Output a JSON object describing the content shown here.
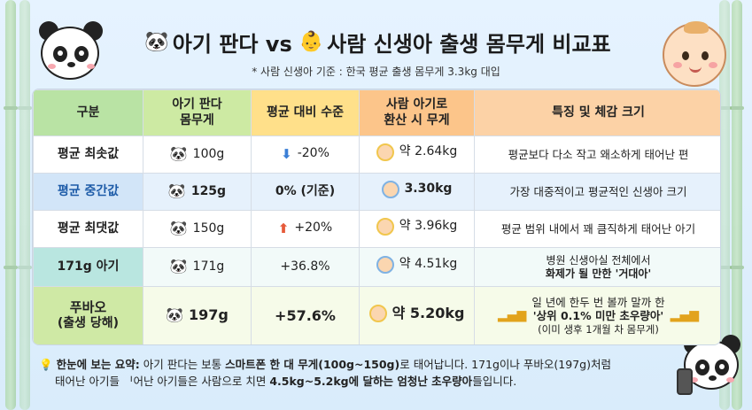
{
  "title": {
    "left_emoji_name": "panda-face-icon",
    "part1": "아기 판다 vs",
    "right_emoji_name": "baby-face-icon",
    "part2": "사람 신생아 출생 몸무게 비교표"
  },
  "note": "* 사람 신생아 기준 : 한국 평균 출생 몸무게 3.3kg 대입",
  "table": {
    "headers": {
      "gubun": "구분",
      "weight_l1": "아기 판다",
      "weight_l2": "몸무게",
      "level": "평균 대비 수준",
      "human_l1": "사람 아기로",
      "human_l2": "환산 시 무게",
      "feature": "특징 및 체감 크기"
    },
    "rows": [
      {
        "label": "평균 최솟값",
        "weight": "100g",
        "level_arrow": "down",
        "level": "-20%",
        "human": "약 2.64kg",
        "feature": "평균보다 다소 작고 왜소하게 태어난 편"
      },
      {
        "label": "평균 중간값",
        "weight": "125g",
        "level": "0% (기준)",
        "human": "3.30kg",
        "feature": "가장 대중적이고 평균적인 신생아 크기"
      },
      {
        "label": "평균 최댓값",
        "weight": "150g",
        "level_arrow": "up",
        "level": "+20%",
        "human": "약 3.96kg",
        "feature": "평균 범위 내에서 꽤 큼직하게 태어난 아기"
      },
      {
        "label": "171g 아기",
        "weight": "171g",
        "level": "+36.8%",
        "human": "약 4.51kg",
        "feature_l1": "병원 신생아실 전체에서",
        "feature_l2": "화제가 될 만한 '거대아'"
      },
      {
        "label_l1": "푸바오",
        "label_l2": "(출생 당해)",
        "weight": "197g",
        "level": "+57.6%",
        "human": "약 5.20kg",
        "feature_l1": "일 년에 한두 번 볼까 말까 한",
        "feature_l2": "'상위 0.1% 미만 초우량아'",
        "feature_l3": "(이미 생후 1개월 차 몸무게)"
      }
    ]
  },
  "summary": {
    "lead": "한눈에 보는 요약:",
    "t1": " 아기 판다는 보통 ",
    "b1": "스마트폰 한 대 무게(100g~150g)",
    "t2": "로 태어납니다. 171g이나 푸바오(197g)처럼",
    "t3": "태어난 아기들 ᅵ어난 아기들은 사람으로 치면 ",
    "b2": "4.5kg~5.2kg에 달하는 엄청난 초우량아",
    "t4": "들입니다."
  },
  "colors": {
    "header_green": "#b9e3a4",
    "header_yellow": "#ffe08a",
    "header_orange": "#fcc58a",
    "mid_row_blue": "#d6e8fa",
    "arrow_down": "#3b7fd6",
    "arrow_up": "#e65a3a"
  }
}
